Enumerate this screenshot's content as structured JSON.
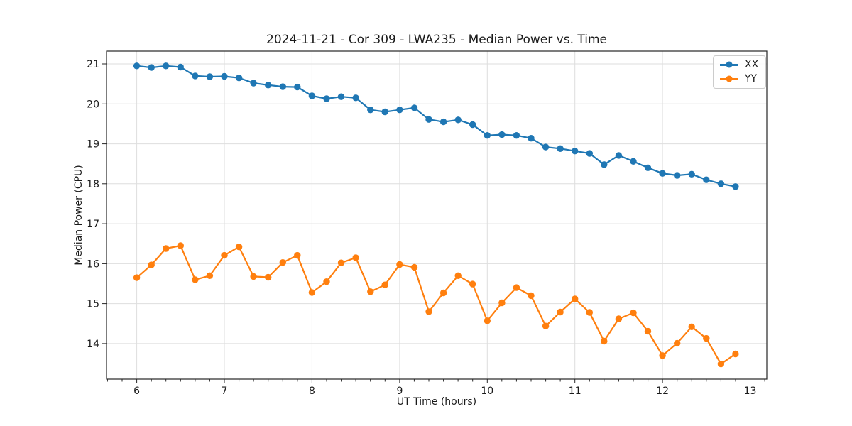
{
  "chart_data": {
    "type": "line",
    "title": "2024-11-21 - Cor 309 - LWA235 - Median Power vs. Time",
    "xlabel": "UT Time (hours)",
    "ylabel": "Median Power (CPU)",
    "xlim": [
      5.655,
      13.19
    ],
    "ylim": [
      13.11,
      21.32
    ],
    "x_ticks": [
      6,
      7,
      8,
      9,
      10,
      11,
      12,
      13
    ],
    "y_ticks": [
      14,
      15,
      16,
      17,
      18,
      19,
      20,
      21
    ],
    "x_minor_step": 0.1666667,
    "grid": true,
    "legend_position": "upper right",
    "x": [
      6.0,
      6.167,
      6.333,
      6.5,
      6.667,
      6.833,
      7.0,
      7.167,
      7.333,
      7.5,
      7.667,
      7.833,
      8.0,
      8.167,
      8.333,
      8.5,
      8.667,
      8.833,
      9.0,
      9.167,
      9.333,
      9.5,
      9.667,
      9.833,
      10.0,
      10.167,
      10.333,
      10.5,
      10.667,
      10.833,
      11.0,
      11.167,
      11.333,
      11.5,
      11.667,
      11.833,
      12.0,
      12.167,
      12.333,
      12.5,
      12.667,
      12.833
    ],
    "series": [
      {
        "name": "XX",
        "color": "#1f77b4",
        "values": [
          20.95,
          20.91,
          20.95,
          20.92,
          20.7,
          20.68,
          20.69,
          20.65,
          20.52,
          20.47,
          20.43,
          20.42,
          20.2,
          20.13,
          20.18,
          20.15,
          19.85,
          19.8,
          19.85,
          19.9,
          19.61,
          19.55,
          19.6,
          19.48,
          19.21,
          19.23,
          19.21,
          19.14,
          18.92,
          18.88,
          18.82,
          18.76,
          18.48,
          18.71,
          18.56,
          18.4,
          18.26,
          18.21,
          18.24,
          18.1,
          18.0,
          17.93
        ]
      },
      {
        "name": "YY",
        "color": "#ff7f0e",
        "values": [
          15.65,
          15.97,
          16.38,
          16.45,
          15.6,
          15.7,
          16.21,
          16.42,
          15.68,
          15.66,
          16.03,
          16.21,
          15.28,
          15.55,
          16.02,
          16.15,
          15.3,
          15.47,
          15.98,
          15.91,
          14.8,
          15.27,
          15.7,
          15.49,
          14.57,
          15.02,
          15.4,
          15.2,
          14.44,
          14.79,
          15.12,
          14.78,
          14.06,
          14.62,
          14.77,
          14.31,
          13.7,
          14.01,
          14.42,
          14.13,
          13.49,
          13.74
        ]
      }
    ]
  }
}
